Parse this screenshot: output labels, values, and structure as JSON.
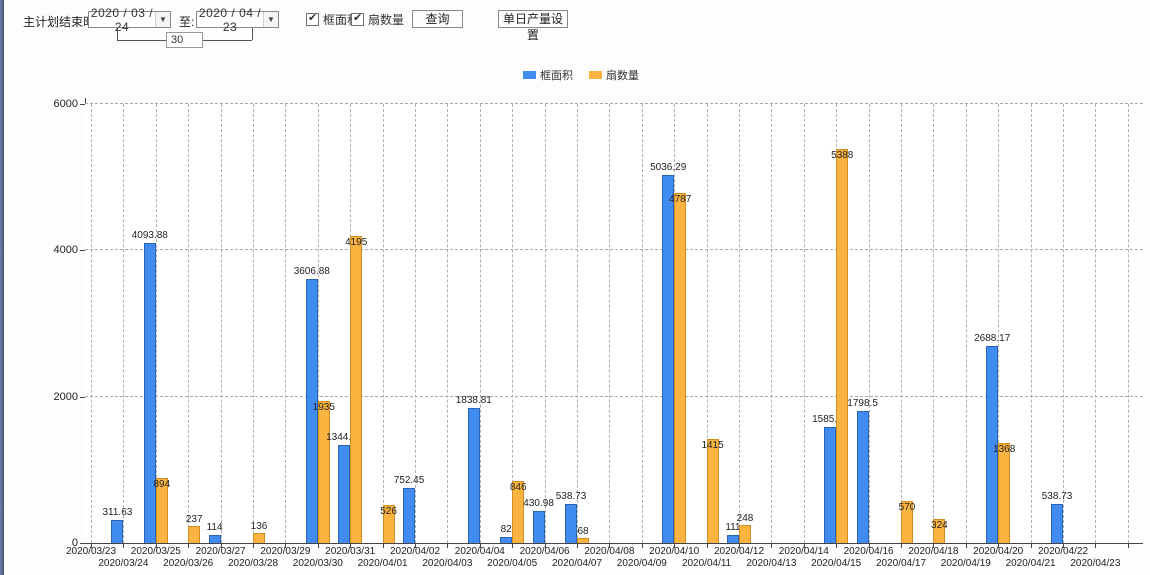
{
  "toolbar": {
    "date_label": "主计划结束时间:",
    "date_from": "2020 / 03 / 24",
    "to_label": "至:",
    "date_to": "2020 / 04 / 23",
    "span_days": "30",
    "checkbox_frame_area": "框面积",
    "checkbox_sash_count": "扇数量",
    "query_button": "查询",
    "daily_output_button": "单日产量设置",
    "dropdown_arrow": "▼",
    "check_glyph": "✔"
  },
  "legend": {
    "items": [
      {
        "label": "框面积",
        "color": "#418CF0"
      },
      {
        "label": "扇数量",
        "color": "#FCB441"
      }
    ]
  },
  "chart_data": {
    "type": "bar",
    "title": "",
    "xlabel": "",
    "ylabel": "",
    "ylim": [
      0,
      6000
    ],
    "yticks": [
      0,
      2000,
      4000,
      6000
    ],
    "grid": "dashed",
    "legend_position": "top-center",
    "categories": [
      "2020/03/23",
      "2020/03/24",
      "2020/03/25",
      "2020/03/26",
      "2020/03/27",
      "2020/03/28",
      "2020/03/29",
      "2020/03/30",
      "2020/03/31",
      "2020/04/01",
      "2020/04/02",
      "2020/04/03",
      "2020/04/04",
      "2020/04/05",
      "2020/04/06",
      "2020/04/07",
      "2020/04/08",
      "2020/04/09",
      "2020/04/10",
      "2020/04/11",
      "2020/04/12",
      "2020/04/13",
      "2020/04/14",
      "2020/04/15",
      "2020/04/16",
      "2020/04/17",
      "2020/04/18",
      "2020/04/19",
      "2020/04/20",
      "2020/04/21",
      "2020/04/22",
      "2020/04/23"
    ],
    "series": [
      {
        "name": "框面积",
        "color": "#418CF0",
        "values": [
          null,
          311.63,
          4093.88,
          null,
          114,
          null,
          null,
          3606.88,
          1344.95,
          null,
          752.45,
          null,
          1838.81,
          82,
          430.98,
          538.73,
          null,
          null,
          5036.29,
          null,
          111,
          null,
          null,
          1585.96,
          1798.5,
          null,
          null,
          null,
          2688.17,
          null,
          538.73,
          null
        ]
      },
      {
        "name": "扇数量",
        "color": "#FCB441",
        "values": [
          null,
          null,
          894,
          237,
          null,
          136,
          null,
          1935,
          4195,
          526,
          null,
          null,
          null,
          846,
          null,
          68,
          null,
          null,
          4787,
          1415,
          248,
          null,
          null,
          5388,
          null,
          570,
          324,
          null,
          1368,
          null,
          null,
          null
        ]
      }
    ]
  }
}
